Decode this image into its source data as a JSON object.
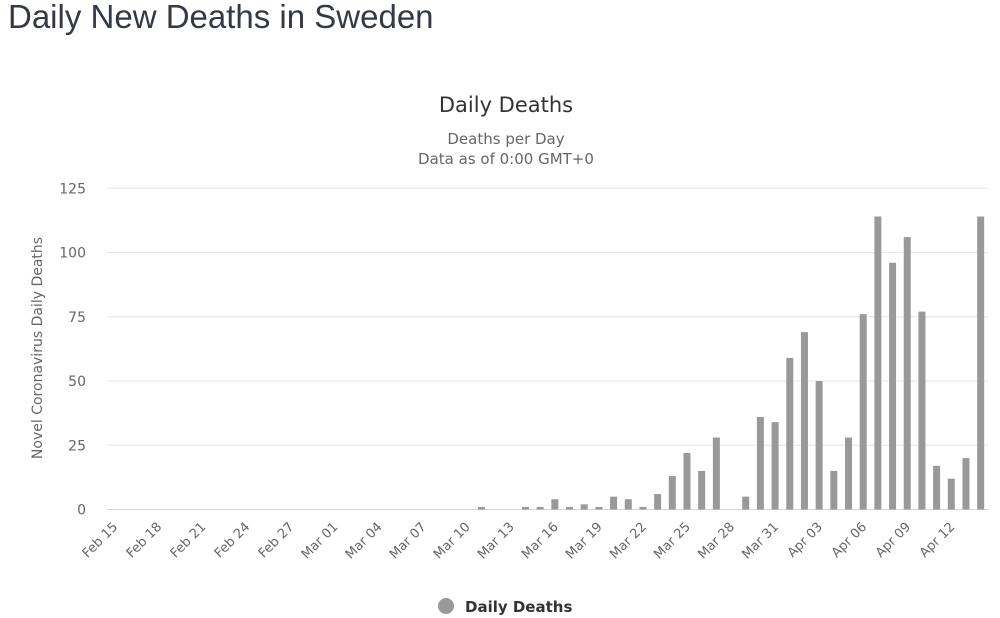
{
  "page": {
    "title": "Daily New Deaths in Sweden"
  },
  "chart_data": {
    "type": "bar",
    "title": "Daily Deaths",
    "subtitle": [
      "Deaths per Day",
      "Data as of 0:00 GMT+0"
    ],
    "ylabel": "Novel Coronavirus Daily Deaths",
    "xlabel": "",
    "ylim": [
      0,
      125
    ],
    "yticks": [
      0,
      25,
      50,
      75,
      100,
      125
    ],
    "grid": true,
    "legend": {
      "position": "bottom",
      "entries": [
        "Daily Deaths"
      ]
    },
    "bar_color": "#999999",
    "x_tick_labels": [
      "Feb 15",
      "Feb 18",
      "Feb 21",
      "Feb 24",
      "Feb 27",
      "Mar 01",
      "Mar 04",
      "Mar 07",
      "Mar 10",
      "Mar 13",
      "Mar 16",
      "Mar 19",
      "Mar 22",
      "Mar 25",
      "Mar 28",
      "Mar 31",
      "Apr 03",
      "Apr 06",
      "Apr 09",
      "Apr 12"
    ],
    "categories": [
      "Feb 15",
      "Feb 16",
      "Feb 17",
      "Feb 18",
      "Feb 19",
      "Feb 20",
      "Feb 21",
      "Feb 22",
      "Feb 23",
      "Feb 24",
      "Feb 25",
      "Feb 26",
      "Feb 27",
      "Feb 28",
      "Feb 29",
      "Mar 01",
      "Mar 02",
      "Mar 03",
      "Mar 04",
      "Mar 05",
      "Mar 06",
      "Mar 07",
      "Mar 08",
      "Mar 09",
      "Mar 10",
      "Mar 11",
      "Mar 12",
      "Mar 13",
      "Mar 14",
      "Mar 15",
      "Mar 16",
      "Mar 17",
      "Mar 18",
      "Mar 19",
      "Mar 20",
      "Mar 21",
      "Mar 22",
      "Mar 23",
      "Mar 24",
      "Mar 25",
      "Mar 26",
      "Mar 27",
      "Mar 28",
      "Mar 29",
      "Mar 30",
      "Mar 31",
      "Apr 01",
      "Apr 02",
      "Apr 03",
      "Apr 04",
      "Apr 05",
      "Apr 06",
      "Apr 07",
      "Apr 08",
      "Apr 09",
      "Apr 10",
      "Apr 11",
      "Apr 12",
      "Apr 13",
      "Apr 14"
    ],
    "series": [
      {
        "name": "Daily Deaths",
        "values": [
          0,
          0,
          0,
          0,
          0,
          0,
          0,
          0,
          0,
          0,
          0,
          0,
          0,
          0,
          0,
          0,
          0,
          0,
          0,
          0,
          0,
          0,
          0,
          0,
          0,
          1,
          0,
          0,
          1,
          1,
          4,
          1,
          2,
          1,
          5,
          4,
          1,
          6,
          13,
          22,
          15,
          28,
          0,
          5,
          36,
          34,
          59,
          69,
          50,
          15,
          28,
          76,
          114,
          96,
          106,
          77,
          17,
          12,
          20,
          114
        ]
      }
    ]
  }
}
